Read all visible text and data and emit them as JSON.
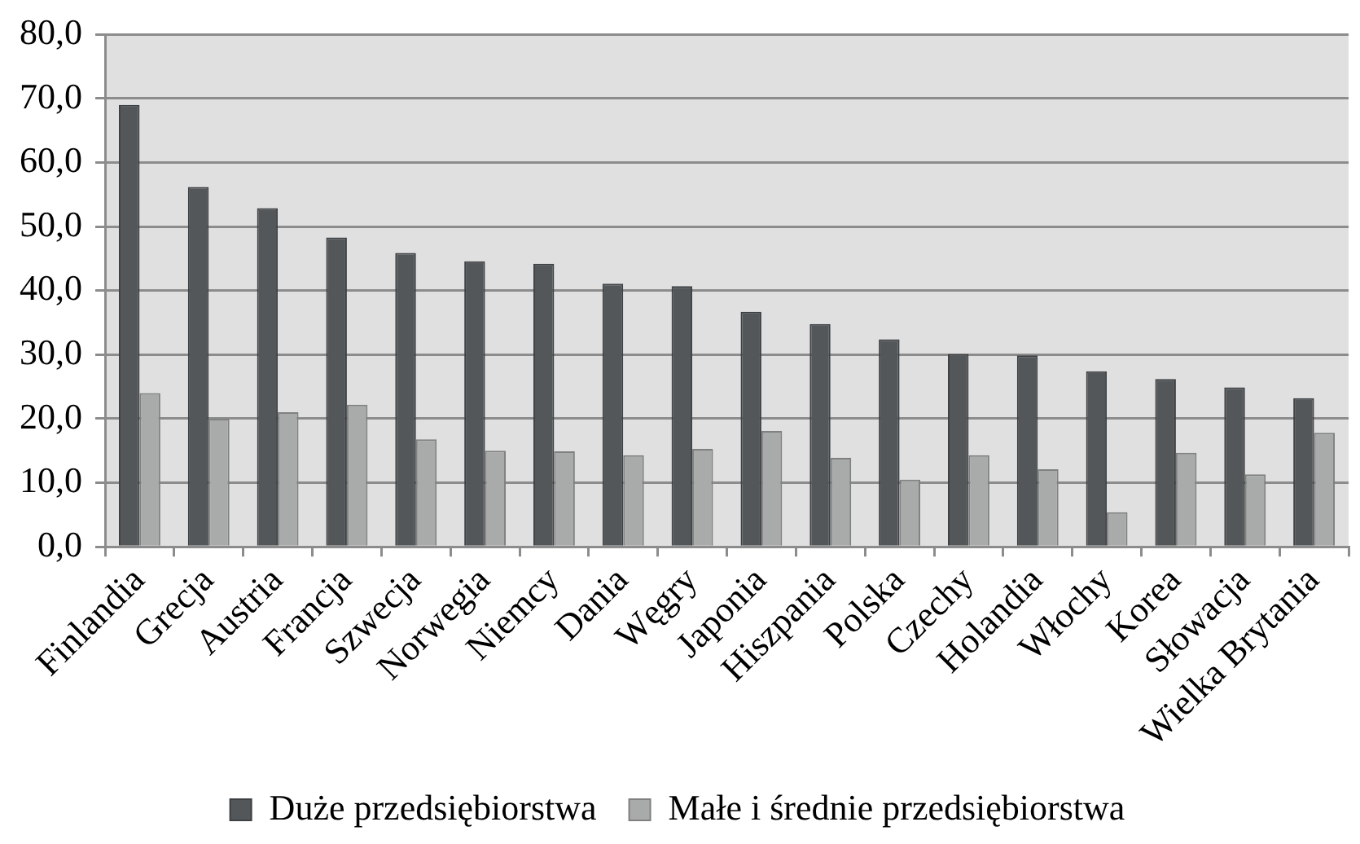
{
  "chart_data": {
    "type": "bar",
    "categories": [
      "Finlandia",
      "Grecja",
      "Austria",
      "Francja",
      "Szwecja",
      "Norwegia",
      "Niemcy",
      "Dania",
      "Węgry",
      "Japonia",
      "Hiszpania",
      "Polska",
      "Czechy",
      "Holandia",
      "Włochy",
      "Korea",
      "Słowacja",
      "Wielka Brytania"
    ],
    "series": [
      {
        "name": "Duże przedsiębiorstwa",
        "color": "#53575a",
        "values": [
          69.0,
          56.2,
          52.9,
          48.3,
          45.9,
          44.6,
          44.2,
          41.1,
          40.7,
          36.7,
          34.8,
          32.4,
          30.1,
          29.9,
          27.4,
          26.2,
          24.9,
          23.2
        ]
      },
      {
        "name": "Małe i średnie przedsiębiorstwa",
        "color": "#a9aaaa",
        "values": [
          24.0,
          20.0,
          21.0,
          22.2,
          16.8,
          15.0,
          14.9,
          14.3,
          15.3,
          18.1,
          13.9,
          10.5,
          14.3,
          12.1,
          5.4,
          14.7,
          11.3,
          17.8
        ]
      }
    ],
    "ylim": [
      0,
      80
    ],
    "yticks": [
      {
        "value": 0,
        "label": "0,0"
      },
      {
        "value": 10,
        "label": "10,0"
      },
      {
        "value": 20,
        "label": "20,0"
      },
      {
        "value": 30,
        "label": "30,0"
      },
      {
        "value": 40,
        "label": "40,0"
      },
      {
        "value": 50,
        "label": "50,0"
      },
      {
        "value": 60,
        "label": "60,0"
      },
      {
        "value": 70,
        "label": "70,0"
      },
      {
        "value": 80,
        "label": "80,0"
      }
    ],
    "grid": "y",
    "legend": "bottom"
  }
}
